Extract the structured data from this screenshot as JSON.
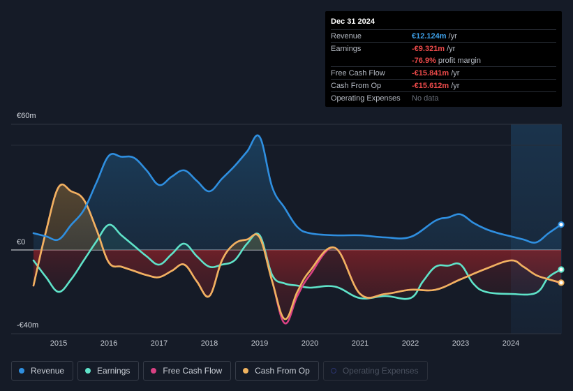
{
  "tooltip": {
    "date": "Dec 31 2024",
    "rows": [
      {
        "label": "Revenue",
        "value": "€12.124m",
        "unit": "/yr"
      },
      {
        "label": "Earnings",
        "value": "-€9.321m",
        "unit": "/yr"
      },
      {
        "label": "",
        "value": "-76.9%",
        "unit": "profit margin"
      },
      {
        "label": "Free Cash Flow",
        "value": "-€15.841m",
        "unit": "/yr"
      },
      {
        "label": "Cash From Op",
        "value": "-€15.612m",
        "unit": "/yr"
      },
      {
        "label": "Operating Expenses",
        "value": "No data",
        "unit": ""
      }
    ]
  },
  "legend": [
    {
      "label": "Revenue",
      "color": "#2f8fe0"
    },
    {
      "label": "Earnings",
      "color": "#5fe3c9"
    },
    {
      "label": "Free Cash Flow",
      "color": "#d94183"
    },
    {
      "label": "Cash From Op",
      "color": "#f0b35f"
    },
    {
      "label": "Operating Expenses",
      "color": "#2b3470"
    }
  ],
  "chart_data": {
    "type": "line",
    "title": "",
    "currency": "€",
    "y_tick_labels": [
      "€60m",
      "€0",
      "-€40m"
    ],
    "y_ticks": [
      60,
      0,
      -40
    ],
    "ylim": [
      -40,
      60
    ],
    "xlim": [
      2014.5,
      2025.0
    ],
    "x_tick_labels": [
      "2015",
      "2016",
      "2017",
      "2018",
      "2019",
      "2020",
      "2021",
      "2022",
      "2023",
      "2024"
    ],
    "x_ticks": [
      2015,
      2016,
      2017,
      2018,
      2019,
      2020,
      2021,
      2022,
      2023,
      2024
    ],
    "forecast_start": 2024.0,
    "series": [
      {
        "name": "Revenue",
        "color": "#2f8fe0",
        "points": [
          [
            2014.5,
            8
          ],
          [
            2014.75,
            6.5
          ],
          [
            2015.0,
            5
          ],
          [
            2015.25,
            12
          ],
          [
            2015.5,
            19
          ],
          [
            2015.75,
            32
          ],
          [
            2016.0,
            45
          ],
          [
            2016.25,
            44.5
          ],
          [
            2016.5,
            44
          ],
          [
            2016.75,
            38
          ],
          [
            2017.0,
            31
          ],
          [
            2017.25,
            35
          ],
          [
            2017.5,
            38
          ],
          [
            2017.75,
            33
          ],
          [
            2018.0,
            28
          ],
          [
            2018.25,
            34
          ],
          [
            2018.5,
            40
          ],
          [
            2018.75,
            47
          ],
          [
            2019.0,
            54
          ],
          [
            2019.25,
            30
          ],
          [
            2019.5,
            20
          ],
          [
            2019.75,
            11
          ],
          [
            2020.0,
            8
          ],
          [
            2020.5,
            7
          ],
          [
            2021.0,
            7
          ],
          [
            2021.5,
            6
          ],
          [
            2022.0,
            6.2
          ],
          [
            2022.5,
            14
          ],
          [
            2022.75,
            15.5
          ],
          [
            2023.0,
            17
          ],
          [
            2023.25,
            13
          ],
          [
            2023.5,
            10
          ],
          [
            2023.75,
            8
          ],
          [
            2024.0,
            6.5
          ],
          [
            2024.25,
            5
          ],
          [
            2024.5,
            3.6
          ],
          [
            2024.75,
            8
          ],
          [
            2025.0,
            12.124
          ]
        ]
      },
      {
        "name": "Earnings",
        "color": "#5fe3c9",
        "points": [
          [
            2014.5,
            -5
          ],
          [
            2014.75,
            -13
          ],
          [
            2015.0,
            -20
          ],
          [
            2015.25,
            -14
          ],
          [
            2015.5,
            -5
          ],
          [
            2015.75,
            4
          ],
          [
            2016.0,
            12
          ],
          [
            2016.25,
            7
          ],
          [
            2016.5,
            2
          ],
          [
            2016.75,
            -3
          ],
          [
            2017.0,
            -7
          ],
          [
            2017.25,
            -2
          ],
          [
            2017.5,
            3
          ],
          [
            2017.75,
            -3
          ],
          [
            2018.0,
            -8
          ],
          [
            2018.25,
            -7
          ],
          [
            2018.5,
            -5
          ],
          [
            2018.75,
            3
          ],
          [
            2019.0,
            7
          ],
          [
            2019.25,
            -12
          ],
          [
            2019.5,
            -16
          ],
          [
            2019.75,
            -17
          ],
          [
            2020.0,
            -18
          ],
          [
            2020.5,
            -17.5
          ],
          [
            2021.0,
            -23
          ],
          [
            2021.5,
            -22
          ],
          [
            2022.0,
            -23
          ],
          [
            2022.25,
            -15
          ],
          [
            2022.5,
            -8
          ],
          [
            2022.75,
            -7.5
          ],
          [
            2023.0,
            -7
          ],
          [
            2023.25,
            -16
          ],
          [
            2023.5,
            -20
          ],
          [
            2024.0,
            -21
          ],
          [
            2024.5,
            -20.5
          ],
          [
            2024.75,
            -13
          ],
          [
            2025.0,
            -9.321
          ]
        ]
      },
      {
        "name": "Free Cash Flow",
        "color": "#d94183",
        "points": [
          [
            2014.5,
            -17
          ],
          [
            2014.75,
            9
          ],
          [
            2015.0,
            30
          ],
          [
            2015.25,
            28
          ],
          [
            2015.5,
            24
          ],
          [
            2015.75,
            10
          ],
          [
            2016.0,
            -6
          ],
          [
            2016.25,
            -8
          ],
          [
            2016.5,
            -10
          ],
          [
            2016.75,
            -12
          ],
          [
            2017.0,
            -13
          ],
          [
            2017.25,
            -10
          ],
          [
            2017.5,
            -7
          ],
          [
            2017.75,
            -15
          ],
          [
            2018.0,
            -22
          ],
          [
            2018.25,
            -5
          ],
          [
            2018.5,
            3
          ],
          [
            2018.75,
            5
          ],
          [
            2019.0,
            6
          ],
          [
            2019.25,
            -15
          ],
          [
            2019.5,
            -35
          ],
          [
            2019.75,
            -22
          ],
          [
            2020.0,
            -12
          ],
          [
            2020.5,
            1
          ],
          [
            2021.0,
            -21
          ],
          [
            2021.5,
            -21
          ],
          [
            2022.0,
            -19
          ],
          [
            2022.5,
            -19
          ],
          [
            2023.0,
            -14
          ],
          [
            2023.5,
            -9
          ],
          [
            2024.0,
            -5
          ],
          [
            2024.25,
            -8
          ],
          [
            2024.5,
            -12
          ],
          [
            2024.75,
            -14
          ],
          [
            2025.0,
            -15.841
          ]
        ]
      },
      {
        "name": "Cash From Op",
        "color": "#f0b35f",
        "points": [
          [
            2014.5,
            -17
          ],
          [
            2014.75,
            9
          ],
          [
            2015.0,
            30
          ],
          [
            2015.25,
            28
          ],
          [
            2015.5,
            24
          ],
          [
            2015.75,
            10
          ],
          [
            2016.0,
            -6
          ],
          [
            2016.25,
            -8
          ],
          [
            2016.5,
            -10
          ],
          [
            2016.75,
            -12
          ],
          [
            2017.0,
            -13
          ],
          [
            2017.25,
            -10
          ],
          [
            2017.5,
            -7
          ],
          [
            2017.75,
            -15
          ],
          [
            2018.0,
            -22
          ],
          [
            2018.25,
            -5
          ],
          [
            2018.5,
            3
          ],
          [
            2018.75,
            5
          ],
          [
            2019.0,
            6
          ],
          [
            2019.25,
            -15
          ],
          [
            2019.5,
            -33
          ],
          [
            2019.75,
            -20
          ],
          [
            2020.0,
            -10
          ],
          [
            2020.5,
            1
          ],
          [
            2021.0,
            -21
          ],
          [
            2021.5,
            -21
          ],
          [
            2022.0,
            -19
          ],
          [
            2022.5,
            -19
          ],
          [
            2023.0,
            -14
          ],
          [
            2023.5,
            -9
          ],
          [
            2024.0,
            -5
          ],
          [
            2024.25,
            -8
          ],
          [
            2024.5,
            -12
          ],
          [
            2024.75,
            -14
          ],
          [
            2025.0,
            -15.612
          ]
        ]
      }
    ]
  }
}
